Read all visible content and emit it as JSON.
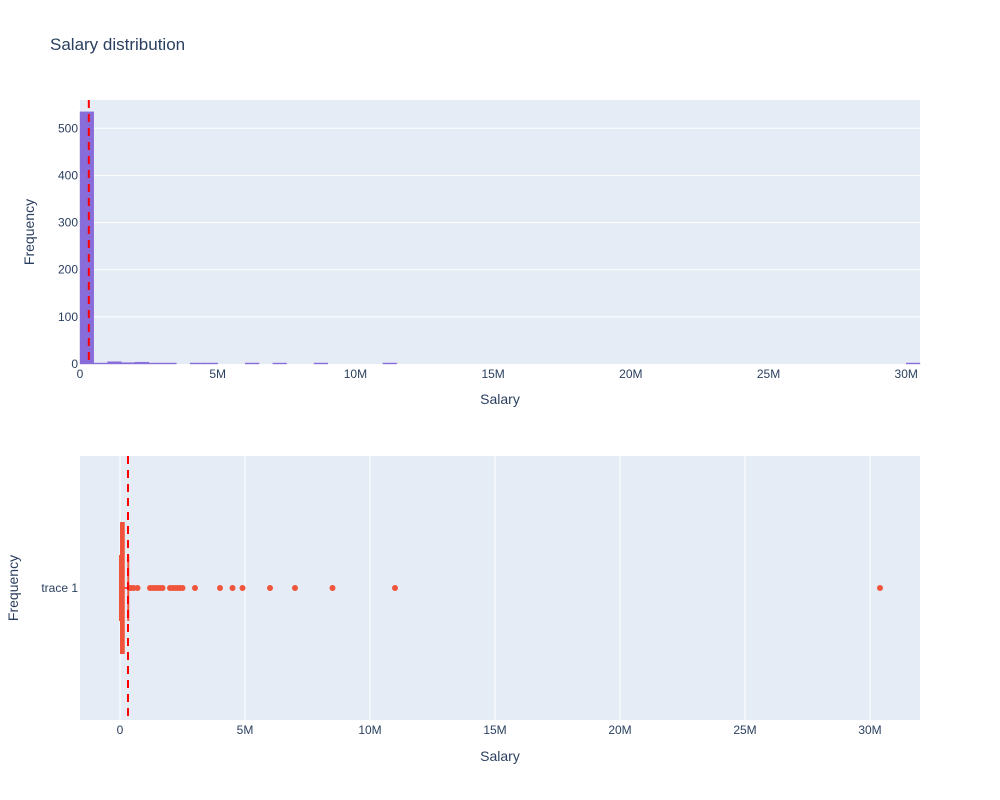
{
  "title": "Salary distribution",
  "colors": {
    "plot_bg": "#e5ecf6",
    "grid": "#ffffff",
    "histogram": "#7f5fd6",
    "box": "#ef553b",
    "reference_line": "#ff0000"
  },
  "chart_data": [
    {
      "type": "histogram",
      "xlabel": "Salary",
      "ylabel": "Frequency",
      "xlim": [
        0,
        30500000
      ],
      "ylim": [
        0,
        560
      ],
      "xticks": [
        0,
        5000000,
        10000000,
        15000000,
        20000000,
        25000000,
        30000000
      ],
      "xtick_labels": [
        "0",
        "5M",
        "10M",
        "15M",
        "20M",
        "25M",
        "30M"
      ],
      "yticks": [
        0,
        100,
        200,
        300,
        400,
        500
      ],
      "ytick_labels": [
        "0",
        "100",
        "200",
        "300",
        "400",
        "500"
      ],
      "bins": [
        {
          "x0": 0,
          "x1": 500000,
          "count": 535
        },
        {
          "x0": 500000,
          "x1": 1000000,
          "count": 2
        },
        {
          "x0": 1000000,
          "x1": 1500000,
          "count": 5
        },
        {
          "x0": 1500000,
          "x1": 2000000,
          "count": 3
        },
        {
          "x0": 2000000,
          "x1": 2500000,
          "count": 4
        },
        {
          "x0": 2500000,
          "x1": 3000000,
          "count": 1
        },
        {
          "x0": 3000000,
          "x1": 3500000,
          "count": 1
        },
        {
          "x0": 4000000,
          "x1": 4500000,
          "count": 1
        },
        {
          "x0": 4500000,
          "x1": 5000000,
          "count": 1
        },
        {
          "x0": 6000000,
          "x1": 6500000,
          "count": 1
        },
        {
          "x0": 7000000,
          "x1": 7500000,
          "count": 1
        },
        {
          "x0": 8500000,
          "x1": 9000000,
          "count": 1
        },
        {
          "x0": 11000000,
          "x1": 11500000,
          "count": 1
        },
        {
          "x0": 30000000,
          "x1": 30500000,
          "count": 1
        }
      ],
      "reference_line_x": 320000
    },
    {
      "type": "box",
      "xlabel": "Salary",
      "ylabel": "Frequency",
      "category": "trace 1",
      "xlim": [
        -1600000,
        32000000
      ],
      "xticks": [
        0,
        5000000,
        10000000,
        15000000,
        20000000,
        25000000,
        30000000
      ],
      "xtick_labels": [
        "0",
        "5M",
        "10M",
        "15M",
        "20M",
        "25M",
        "30M"
      ],
      "box": {
        "q1": 40000,
        "median": 90000,
        "q3": 150000,
        "lower_fence": 0,
        "upper_fence": 330000
      },
      "outliers": [
        400000,
        450000,
        550000,
        700000,
        1200000,
        1300000,
        1400000,
        1500000,
        1600000,
        1700000,
        2000000,
        2100000,
        2200000,
        2300000,
        2400000,
        2500000,
        3000000,
        4000000,
        4500000,
        4900000,
        6000000,
        7000000,
        8500000,
        11000000,
        30400000
      ],
      "reference_line_x": 320000
    }
  ]
}
